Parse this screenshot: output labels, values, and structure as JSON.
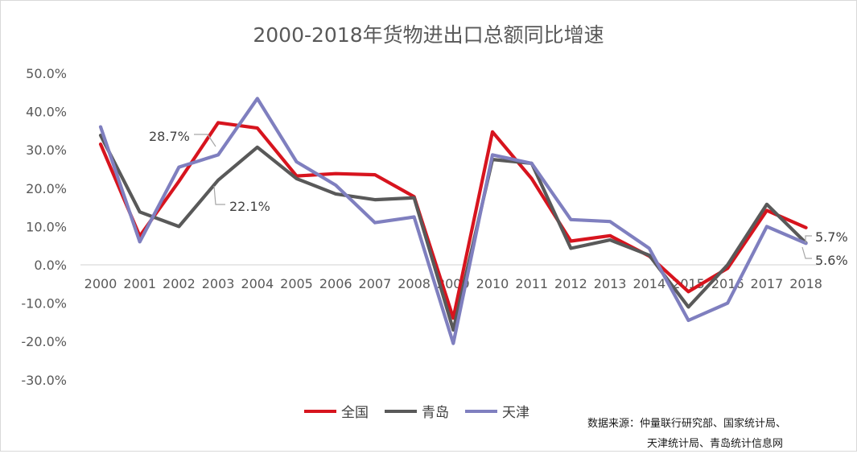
{
  "chart_data": {
    "type": "line",
    "title": "2000-2018年货物进出口总额同比增速",
    "categories": [
      "2000",
      "2001",
      "2002",
      "2003",
      "2004",
      "2005",
      "2006",
      "2007",
      "2008",
      "2009",
      "2010",
      "2011",
      "2012",
      "2013",
      "2014",
      "2015",
      "2016",
      "2017",
      "2018"
    ],
    "ylim": [
      -30,
      50
    ],
    "yticks": [
      "50.0%",
      "40.0%",
      "30.0%",
      "20.0%",
      "10.0%",
      "0.0%",
      "-10.0%",
      "-20.0%",
      "-30.0%"
    ],
    "grid": "zero-line-only",
    "legend_position": "bottom",
    "series": [
      {
        "name": "全国",
        "color": "#d7141e",
        "values": [
          31.5,
          7.5,
          21.8,
          37.1,
          35.7,
          23.2,
          23.8,
          23.5,
          17.8,
          -13.9,
          34.7,
          22.5,
          6.2,
          7.6,
          2.3,
          -7.0,
          -0.9,
          14.2,
          9.7
        ]
      },
      {
        "name": "青岛",
        "color": "#595959",
        "values": [
          33.8,
          13.8,
          10.0,
          22.1,
          30.7,
          22.5,
          18.5,
          17.0,
          17.5,
          -17.0,
          27.5,
          26.5,
          4.3,
          6.5,
          2.5,
          -11.0,
          0.0,
          15.8,
          5.7
        ]
      },
      {
        "name": "天津",
        "color": "#7f7fbf",
        "values": [
          36.0,
          6.0,
          25.5,
          28.7,
          43.4,
          26.9,
          20.8,
          11.0,
          12.5,
          -20.5,
          28.7,
          26.5,
          11.8,
          11.3,
          4.3,
          -14.5,
          -10.0,
          10.0,
          5.6
        ]
      }
    ],
    "annotations": [
      {
        "label": "28.7%",
        "series": "天津",
        "category": "2003"
      },
      {
        "label": "22.1%",
        "series": "青岛",
        "category": "2003"
      },
      {
        "label": "5.7%",
        "series": "青岛",
        "category": "2018"
      },
      {
        "label": "5.6%",
        "series": "天津",
        "category": "2018"
      }
    ]
  },
  "source": {
    "line1": "数据来源：仲量联行研究部、国家统计局、",
    "line2": "天津统计局、青岛统计信息网"
  }
}
